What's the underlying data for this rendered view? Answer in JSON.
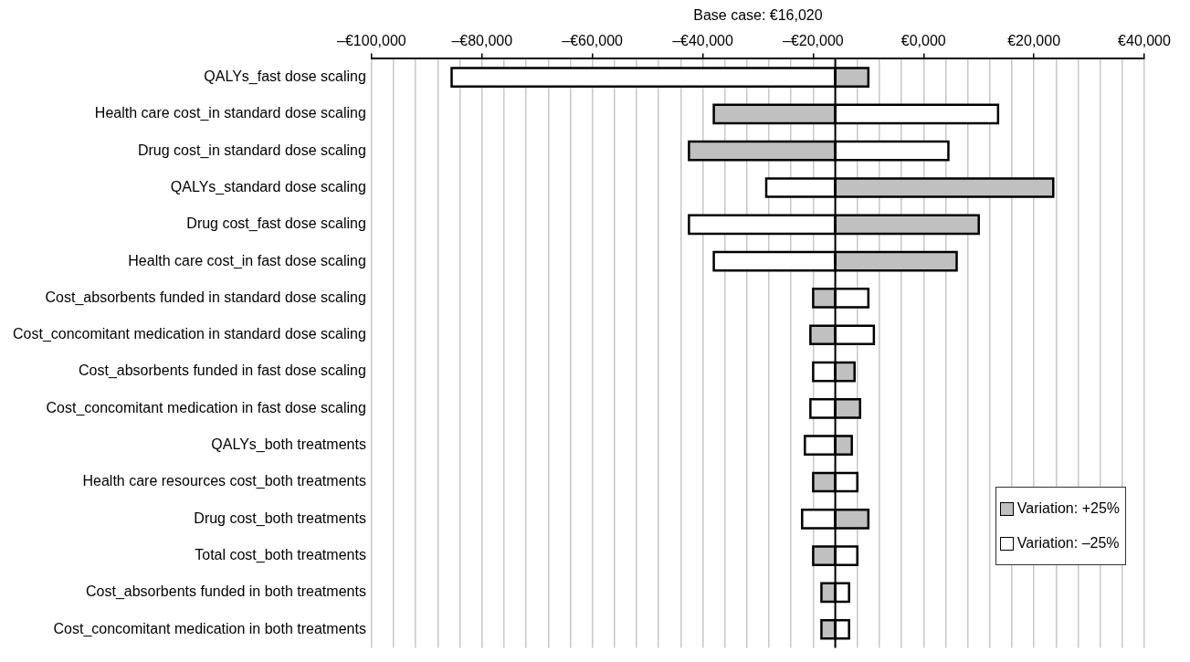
{
  "chart_data": {
    "type": "bar",
    "orientation": "horizontal",
    "xlabel": "Base case: €16,020",
    "categories": [
      "QALYs_fast dose scaling",
      "Health care cost_in standard dose scaling",
      "Drug cost_in standard dose scaling",
      "QALYs_standard dose scaling",
      "Drug cost_fast dose scaling",
      "Health care cost_in fast dose scaling",
      "Cost_absorbents funded in standard dose scaling",
      "Cost_concomitant medication in standard dose scaling",
      "Cost_absorbents funded in fast dose scaling",
      "Cost_concomitant medication in fast dose scaling",
      "QALYs_both treatments",
      "Health care resources cost_both treatments",
      "Drug cost_both treatments",
      "Total cost_both treatments",
      "Cost_absorbents funded in both treatments",
      "Cost_concomitant medication in both treatments"
    ],
    "series": [
      {
        "name": "Variation: +25%",
        "color": "#c0c0c0",
        "base": [
          -16000,
          -16000,
          -16000,
          -16000,
          -16000,
          -16000,
          -16000,
          -16000,
          -16000,
          -16000,
          -16000,
          -16000,
          -16000,
          -16000,
          -16000,
          -16000
        ],
        "values": [
          6000,
          -22000,
          -26500,
          39500,
          26000,
          22000,
          -4000,
          -4500,
          3500,
          4500,
          3000,
          -4000,
          6000,
          -4000,
          -2500,
          -2500
        ]
      },
      {
        "name": "Variation: –25%",
        "color": "#ffffff",
        "base": [
          -16000,
          -16000,
          -16000,
          -16000,
          -16000,
          -16000,
          -16000,
          -16000,
          -16000,
          -16000,
          -16000,
          -16000,
          -16000,
          -16000,
          -16000,
          -16000
        ],
        "values": [
          -69500,
          29500,
          20500,
          -12500,
          -26500,
          -22000,
          6000,
          7000,
          -4000,
          -4500,
          -5500,
          4000,
          -6000,
          4000,
          2500,
          2500
        ]
      }
    ],
    "xlim": [
      -100000,
      40000
    ],
    "xticks": [
      {
        "value": -100000,
        "label": "–€100,000"
      },
      {
        "value": -96000,
        "label": null
      },
      {
        "value": -92000,
        "label": null
      },
      {
        "value": -88000,
        "label": null
      },
      {
        "value": -84000,
        "label": null
      },
      {
        "value": -80000,
        "label": "–€80,000"
      },
      {
        "value": -76000,
        "label": null
      },
      {
        "value": -72000,
        "label": null
      },
      {
        "value": -68000,
        "label": null
      },
      {
        "value": -64000,
        "label": null
      },
      {
        "value": -60000,
        "label": "–€60,000"
      },
      {
        "value": -56000,
        "label": null
      },
      {
        "value": -52000,
        "label": null
      },
      {
        "value": -48000,
        "label": null
      },
      {
        "value": -44000,
        "label": null
      },
      {
        "value": -40000,
        "label": "–€40,000"
      },
      {
        "value": -36000,
        "label": null
      },
      {
        "value": -32000,
        "label": null
      },
      {
        "value": -28000,
        "label": null
      },
      {
        "value": -24000,
        "label": null
      },
      {
        "value": -20000,
        "label": "–€20,000"
      },
      {
        "value": -16000,
        "label": null
      },
      {
        "value": -12000,
        "label": null
      },
      {
        "value": -8000,
        "label": null
      },
      {
        "value": -4000,
        "label": null
      },
      {
        "value": 0,
        "label": "€0,000"
      },
      {
        "value": 4000,
        "label": null
      },
      {
        "value": 8000,
        "label": null
      },
      {
        "value": 12000,
        "label": null
      },
      {
        "value": 16000,
        "label": null
      },
      {
        "value": 20000,
        "label": "€20,000"
      },
      {
        "value": 24000,
        "label": null
      },
      {
        "value": 28000,
        "label": null
      },
      {
        "value": 32000,
        "label": null
      },
      {
        "value": 36000,
        "label": null
      },
      {
        "value": 40000,
        "label": "€40,000"
      }
    ],
    "ref_lines": [
      {
        "axis": "x",
        "value": -16000,
        "color": "#000000"
      }
    ],
    "grid": "x",
    "legend": "bottom right"
  }
}
